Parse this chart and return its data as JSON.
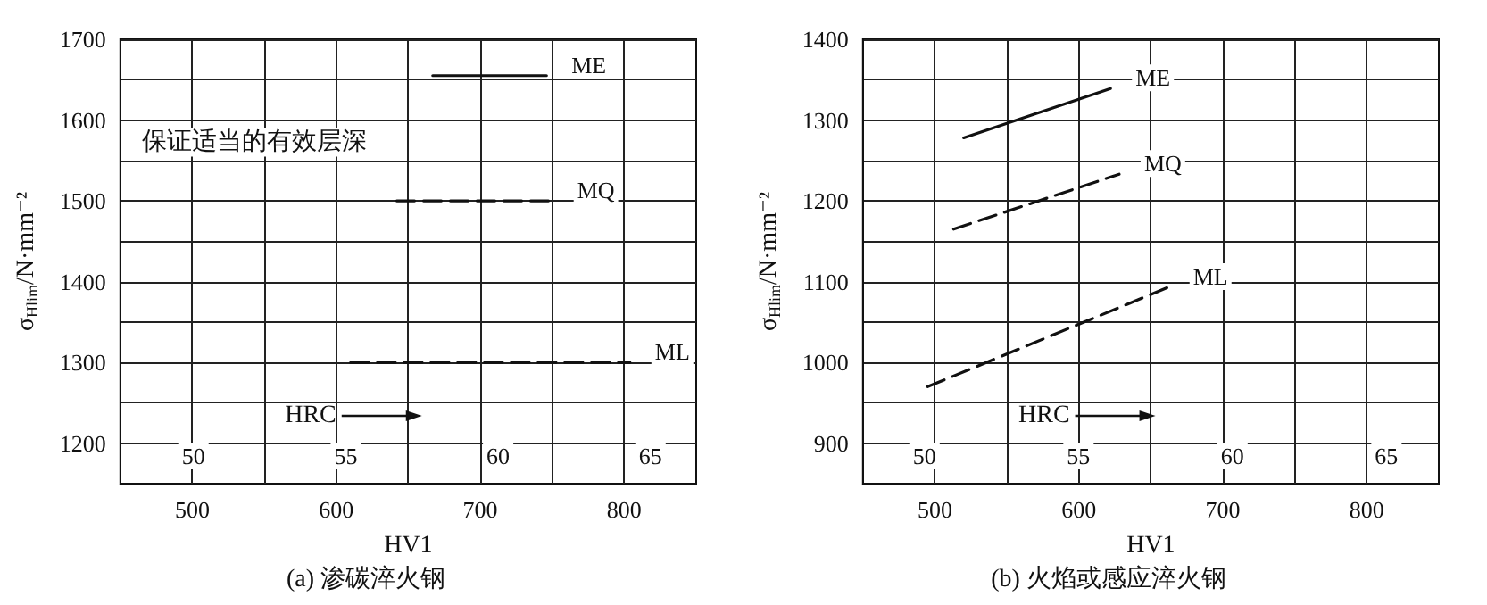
{
  "chart_data": [
    {
      "type": "line",
      "title": "(a) 渗碳淬火钢",
      "xlabel": "HV1",
      "ylabel": "σ$_{Hlim}$/N·mm⁻²",
      "x2label": "HRC",
      "xlim": [
        450,
        850
      ],
      "xticks": [
        500,
        {
          "value": 550,
          "label": null
        },
        600,
        {
          "value": 650,
          "label": null
        },
        700,
        {
          "value": 750,
          "label": null
        },
        800
      ],
      "ylim": [
        1150,
        1700
      ],
      "yticks": [
        1200,
        {
          "value": 1250,
          "label": null
        },
        1300,
        {
          "value": 1350,
          "label": null
        },
        1400,
        {
          "value": 1450,
          "label": null
        },
        1500,
        {
          "value": 1550,
          "label": null
        },
        1600,
        {
          "value": 1650,
          "label": null
        },
        1700
      ],
      "x2lim": [
        47.6,
        66.5
      ],
      "x2ticks": [
        50,
        55,
        60,
        65
      ],
      "grid": true,
      "legend": false,
      "marker": "none",
      "annotations": [
        "保证适当的有效层深"
      ],
      "series": [
        {
          "name": "ME",
          "color": "#111111",
          "line_style": "solid",
          "x": [
            667,
            746
          ],
          "values": [
            1655,
            1655
          ]
        },
        {
          "name": "MQ",
          "color": "#111111",
          "line_style": "dashed",
          "x": [
            642,
            750
          ],
          "values": [
            1500,
            1500
          ]
        },
        {
          "name": "ML",
          "color": "#111111",
          "line_style": "dashed",
          "x": [
            610,
            804
          ],
          "values": [
            1300,
            1300
          ]
        }
      ]
    },
    {
      "type": "line",
      "title": "(b) 火焰或感应淬火钢",
      "xlabel": "HV1",
      "ylabel": "σ$_{Hlim}$/N·mm⁻²",
      "x2label": "HRC",
      "xlim": [
        450,
        850
      ],
      "xticks": [
        500,
        {
          "value": 550,
          "label": null
        },
        600,
        {
          "value": 650,
          "label": null
        },
        700,
        {
          "value": 750,
          "label": null
        },
        800
      ],
      "ylim": [
        850,
        1400
      ],
      "yticks": [
        900,
        {
          "value": 950,
          "label": null
        },
        1000,
        {
          "value": 1050,
          "label": null
        },
        1100,
        {
          "value": 1150,
          "label": null
        },
        1200,
        {
          "value": 1250,
          "label": null
        },
        1300,
        {
          "value": 1350,
          "label": null
        },
        1400
      ],
      "x2lim": [
        48,
        66.7
      ],
      "x2ticks": [
        50,
        55,
        60,
        65
      ],
      "grid": true,
      "legend": false,
      "marker": "none",
      "series": [
        {
          "name": "ME",
          "color": "#111111",
          "line_style": "solid",
          "x": [
            520,
            622
          ],
          "values": [
            1278,
            1339
          ]
        },
        {
          "name": "MQ",
          "color": "#111111",
          "line_style": "dashed",
          "x": [
            513,
            628
          ],
          "values": [
            1165,
            1233
          ]
        },
        {
          "name": "ML",
          "color": "#111111",
          "line_style": "dashed",
          "x": [
            495,
            662
          ],
          "values": [
            970,
            1093
          ]
        }
      ]
    }
  ]
}
